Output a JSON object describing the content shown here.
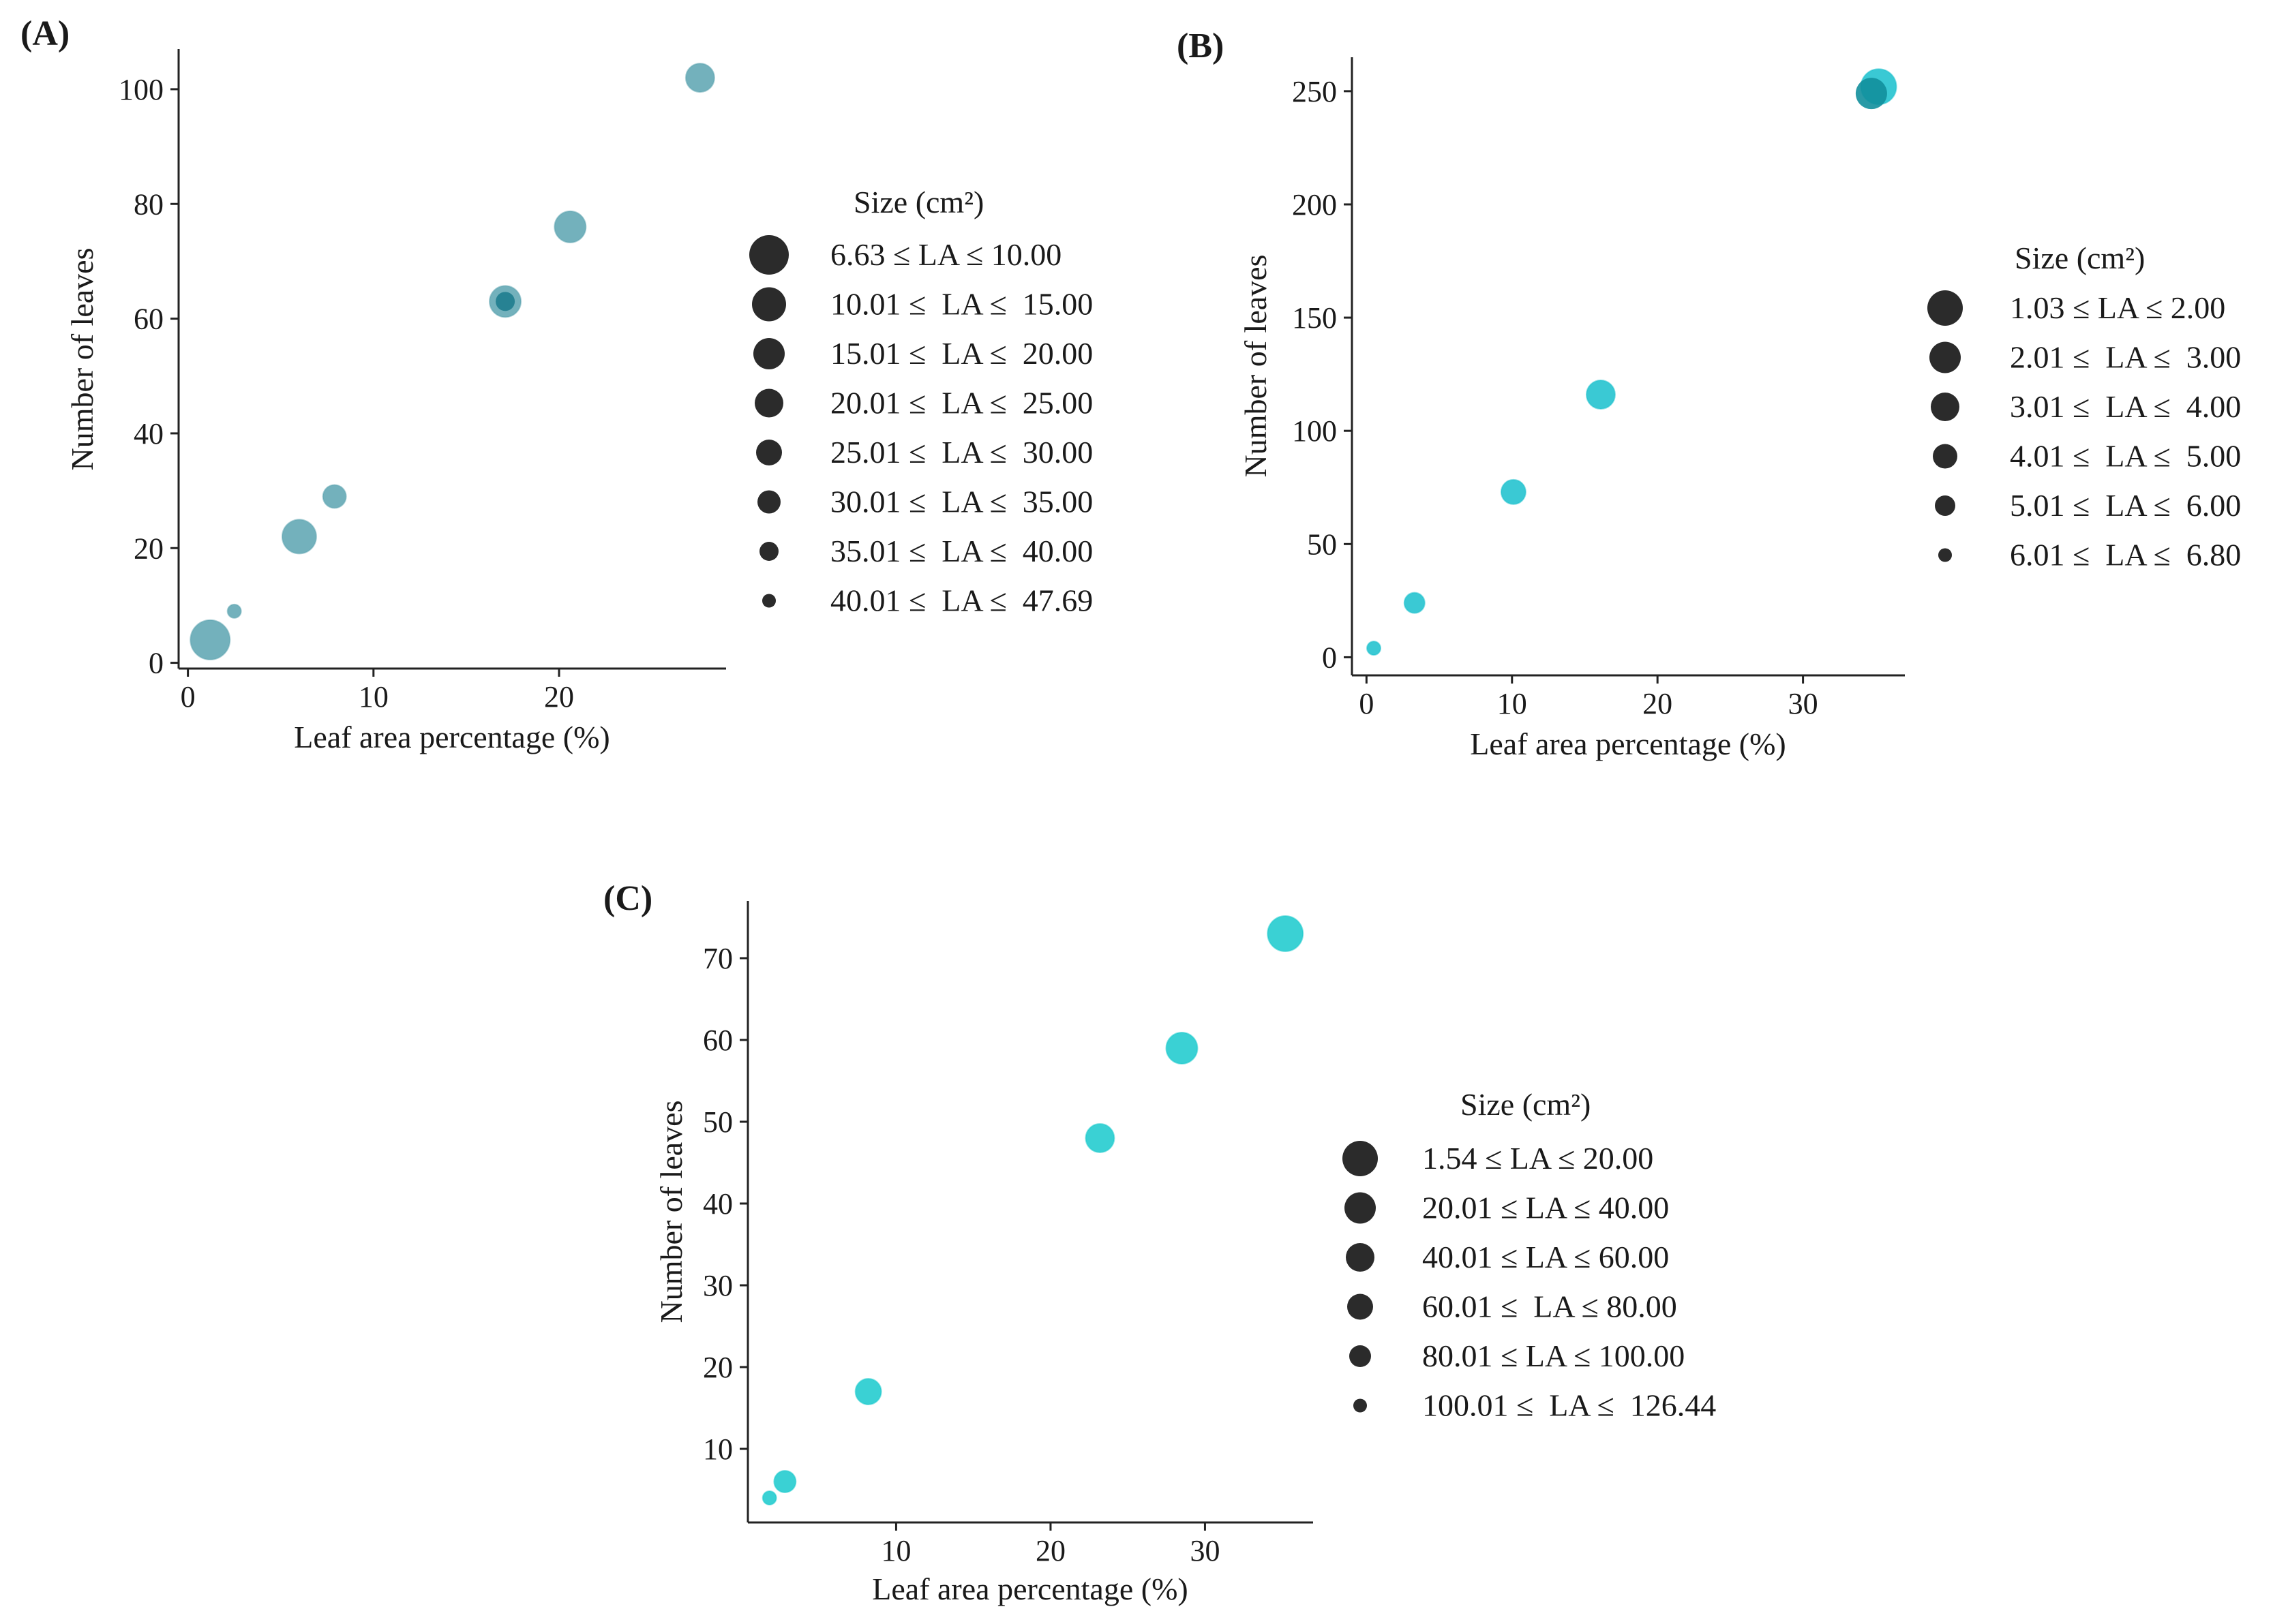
{
  "chart_data": [
    {
      "panel": "(A)",
      "type": "scatter",
      "xlabel": "Leaf area percentage (%)",
      "ylabel": "Number of leaves",
      "xlim": [
        -0.5,
        29
      ],
      "ylim": [
        -1,
        107
      ],
      "xticks": [
        0,
        10,
        20
      ],
      "yticks": [
        0,
        20,
        40,
        60,
        80,
        100
      ],
      "point_color": "#5ba3b0",
      "overlay_color": "#1f7d8e",
      "points": [
        {
          "x": 1.2,
          "y": 4,
          "size_class": 0
        },
        {
          "x": 2.5,
          "y": 9,
          "size_class": 7
        },
        {
          "x": 6.0,
          "y": 22,
          "size_class": 1
        },
        {
          "x": 7.9,
          "y": 29,
          "size_class": 5
        },
        {
          "x": 17.1,
          "y": 63,
          "size_class": 2
        },
        {
          "x": 17.1,
          "y": 63,
          "size_class": 6,
          "overlay": true
        },
        {
          "x": 20.6,
          "y": 76,
          "size_class": 2
        },
        {
          "x": 27.6,
          "y": 102,
          "size_class": 3
        }
      ],
      "legend": {
        "title": "Size (cm²)",
        "entries": [
          "6.63 ≤ LA ≤ 10.00",
          "10.01 ≤  LA ≤  15.00",
          "15.01 ≤  LA ≤  20.00",
          "20.01 ≤  LA ≤  25.00",
          "25.01 ≤  LA ≤  30.00",
          "30.01 ≤  LA ≤  35.00",
          "35.01 ≤  LA ≤  40.00",
          "40.01 ≤  LA ≤  47.69"
        ]
      }
    },
    {
      "panel": "(B)",
      "type": "scatter",
      "xlabel": "Leaf area percentage (%)",
      "ylabel": "Number of leaves",
      "xlim": [
        -1,
        37
      ],
      "ylim": [
        -8,
        265
      ],
      "xticks": [
        0,
        10,
        20,
        30
      ],
      "yticks": [
        0,
        50,
        100,
        150,
        200,
        250
      ],
      "point_color": "#17c0cc",
      "overlay_color": "#128f9c",
      "points": [
        {
          "x": 0.5,
          "y": 4,
          "size_class": 5
        },
        {
          "x": 3.3,
          "y": 24,
          "size_class": 4
        },
        {
          "x": 10.1,
          "y": 73,
          "size_class": 3
        },
        {
          "x": 16.1,
          "y": 116,
          "size_class": 2
        },
        {
          "x": 35.2,
          "y": 252,
          "size_class": 0
        },
        {
          "x": 34.7,
          "y": 249,
          "size_class": 1,
          "overlay": true
        }
      ],
      "legend": {
        "title": "Size (cm²)",
        "entries": [
          "1.03 ≤ LA ≤ 2.00",
          "2.01 ≤  LA ≤  3.00",
          "3.01 ≤  LA ≤  4.00",
          "4.01 ≤  LA ≤  5.00",
          "5.01 ≤  LA ≤  6.00",
          "6.01 ≤  LA ≤  6.80"
        ]
      }
    },
    {
      "panel": "(C)",
      "type": "scatter",
      "xlabel": "Leaf area percentage (%)",
      "ylabel": "Number of leaves",
      "xlim": [
        0.4,
        37
      ],
      "ylim": [
        1,
        77
      ],
      "xticks": [
        10,
        20,
        30
      ],
      "yticks": [
        10,
        20,
        30,
        40,
        50,
        60,
        70
      ],
      "point_color": "#17c9cc",
      "overlay_color": "#17c9cc",
      "points": [
        {
          "x": 1.8,
          "y": 4,
          "size_class": 5
        },
        {
          "x": 2.8,
          "y": 6,
          "size_class": 4
        },
        {
          "x": 8.2,
          "y": 17,
          "size_class": 3
        },
        {
          "x": 23.2,
          "y": 48,
          "size_class": 2
        },
        {
          "x": 28.5,
          "y": 59,
          "size_class": 1
        },
        {
          "x": 35.2,
          "y": 73,
          "size_class": 0
        }
      ],
      "legend": {
        "title": "Size (cm²)",
        "entries": [
          "1.54 ≤ LA ≤ 20.00",
          "20.01 ≤ LA ≤ 40.00",
          "40.01 ≤ LA ≤ 60.00",
          "60.01 ≤  LA ≤ 80.00",
          "80.01 ≤ LA ≤ 100.00",
          "100.01 ≤  LA ≤  126.44"
        ]
      }
    }
  ]
}
